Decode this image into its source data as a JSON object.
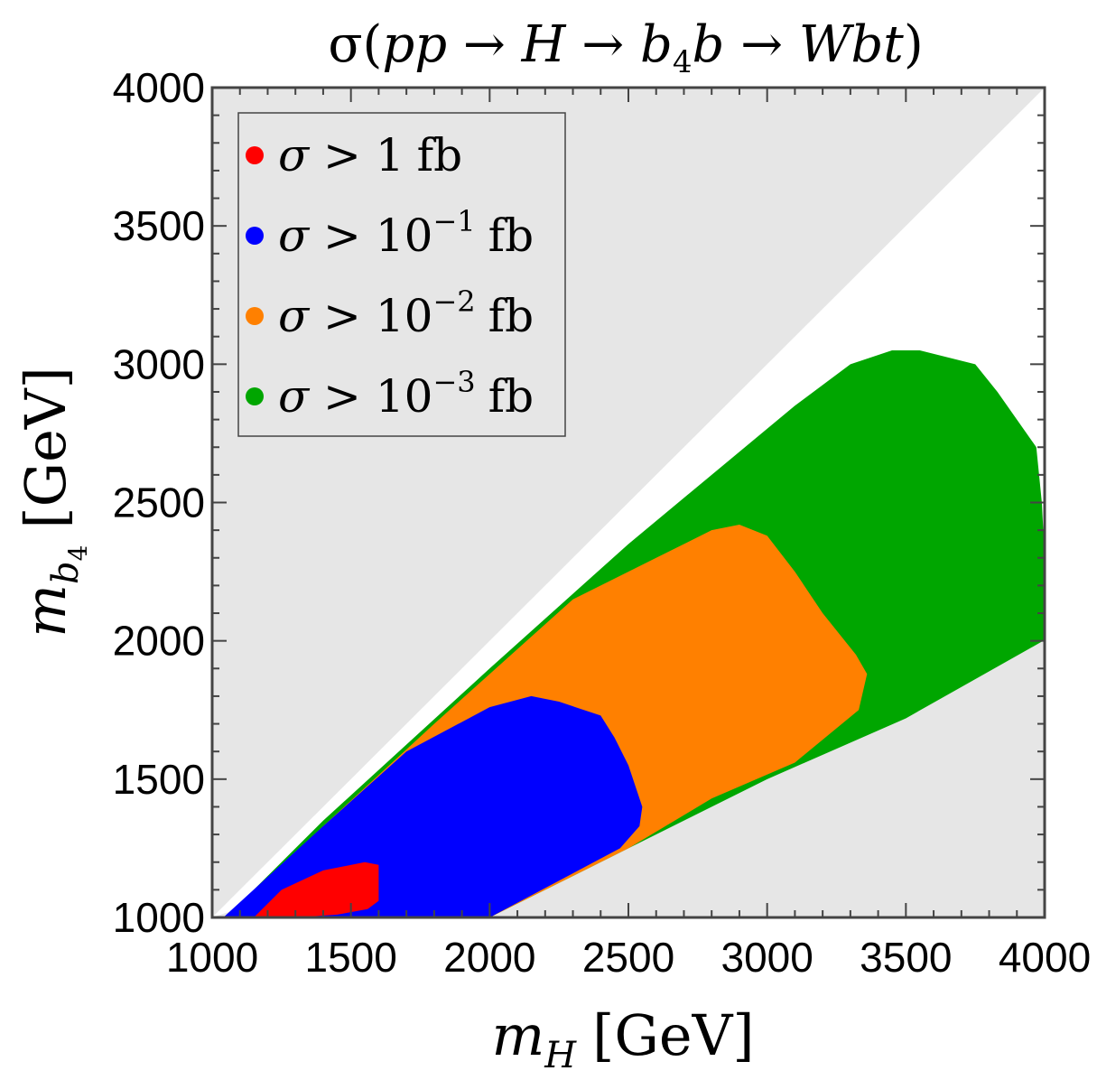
{
  "chart_data": {
    "type": "area",
    "title": {
      "parts": [
        "σ(",
        "pp",
        " → ",
        "H",
        " → ",
        "b",
        "4",
        "b",
        " → ",
        "Wbt",
        ")"
      ]
    },
    "xlabel": {
      "var": "m",
      "sub": "H",
      "unit": "[GeV]"
    },
    "ylabel": {
      "var": "m",
      "sub": "b",
      "subsub": "4",
      "unit": "[GeV]"
    },
    "xlim": [
      1000,
      4000
    ],
    "ylim": [
      1000,
      4000
    ],
    "xticks": [
      "1000",
      "1500",
      "2000",
      "2500",
      "3000",
      "3500",
      "4000"
    ],
    "yticks": [
      "1000",
      "1500",
      "2000",
      "2500",
      "3000",
      "3500",
      "4000"
    ],
    "excluded_color": "#e6e6e6",
    "allowed_wedge": {
      "upper": [
        [
          1000,
          1000
        ],
        [
          4000,
          4000
        ]
      ],
      "lower": [
        [
          1000,
          1000
        ],
        [
          4000,
          2000
        ]
      ]
    },
    "legend_position": "top-left",
    "series": [
      {
        "name": "σ > 10⁻³ fb",
        "legend": {
          "lhs": "σ > 10",
          "exp": "−3",
          "unit": "fb"
        },
        "color": "#00a600",
        "points": [
          [
            1050,
            1000
          ],
          [
            1400,
            1350
          ],
          [
            2000,
            1900
          ],
          [
            2500,
            2350
          ],
          [
            2800,
            2600
          ],
          [
            3100,
            2850
          ],
          [
            3300,
            3000
          ],
          [
            3450,
            3050
          ],
          [
            3550,
            3050
          ],
          [
            3750,
            3000
          ],
          [
            3830,
            2900
          ],
          [
            3900,
            2800
          ],
          [
            3970,
            2700
          ],
          [
            3990,
            2500
          ],
          [
            4000,
            2300
          ],
          [
            3995,
            2000
          ],
          [
            3500,
            1720
          ],
          [
            3000,
            1500
          ],
          [
            2500,
            1250
          ],
          [
            2000,
            1000
          ]
        ]
      },
      {
        "name": "σ > 10⁻² fb",
        "legend": {
          "lhs": "σ > 10",
          "exp": "−2",
          "unit": "fb"
        },
        "color": "#ff8000",
        "points": [
          [
            1050,
            1000
          ],
          [
            1400,
            1330
          ],
          [
            1800,
            1700
          ],
          [
            2300,
            2150
          ],
          [
            2600,
            2300
          ],
          [
            2800,
            2400
          ],
          [
            2900,
            2420
          ],
          [
            3000,
            2380
          ],
          [
            3100,
            2250
          ],
          [
            3200,
            2100
          ],
          [
            3320,
            1950
          ],
          [
            3360,
            1880
          ],
          [
            3330,
            1750
          ],
          [
            3100,
            1560
          ],
          [
            2800,
            1430
          ],
          [
            2500,
            1250
          ],
          [
            2000,
            1000
          ]
        ]
      },
      {
        "name": "σ > 10⁻¹ fb",
        "legend": {
          "lhs": "σ > 10",
          "exp": "−1",
          "unit": "fb"
        },
        "color": "#0000ff",
        "points": [
          [
            1040,
            1000
          ],
          [
            1400,
            1330
          ],
          [
            1700,
            1600
          ],
          [
            2000,
            1760
          ],
          [
            2150,
            1800
          ],
          [
            2250,
            1780
          ],
          [
            2400,
            1730
          ],
          [
            2450,
            1650
          ],
          [
            2500,
            1550
          ],
          [
            2550,
            1400
          ],
          [
            2540,
            1330
          ],
          [
            2470,
            1250
          ],
          [
            2000,
            1000
          ]
        ]
      },
      {
        "name": "σ > 1 fb",
        "legend": {
          "lhs": "σ > 1",
          "exp": "",
          "unit": "fb"
        },
        "color": "#ff0000",
        "points": [
          [
            1150,
            1000
          ],
          [
            1250,
            1100
          ],
          [
            1400,
            1170
          ],
          [
            1550,
            1200
          ],
          [
            1600,
            1190
          ],
          [
            1600,
            1060
          ],
          [
            1560,
            1030
          ],
          [
            1450,
            1010
          ],
          [
            1300,
            1000
          ]
        ]
      }
    ]
  }
}
